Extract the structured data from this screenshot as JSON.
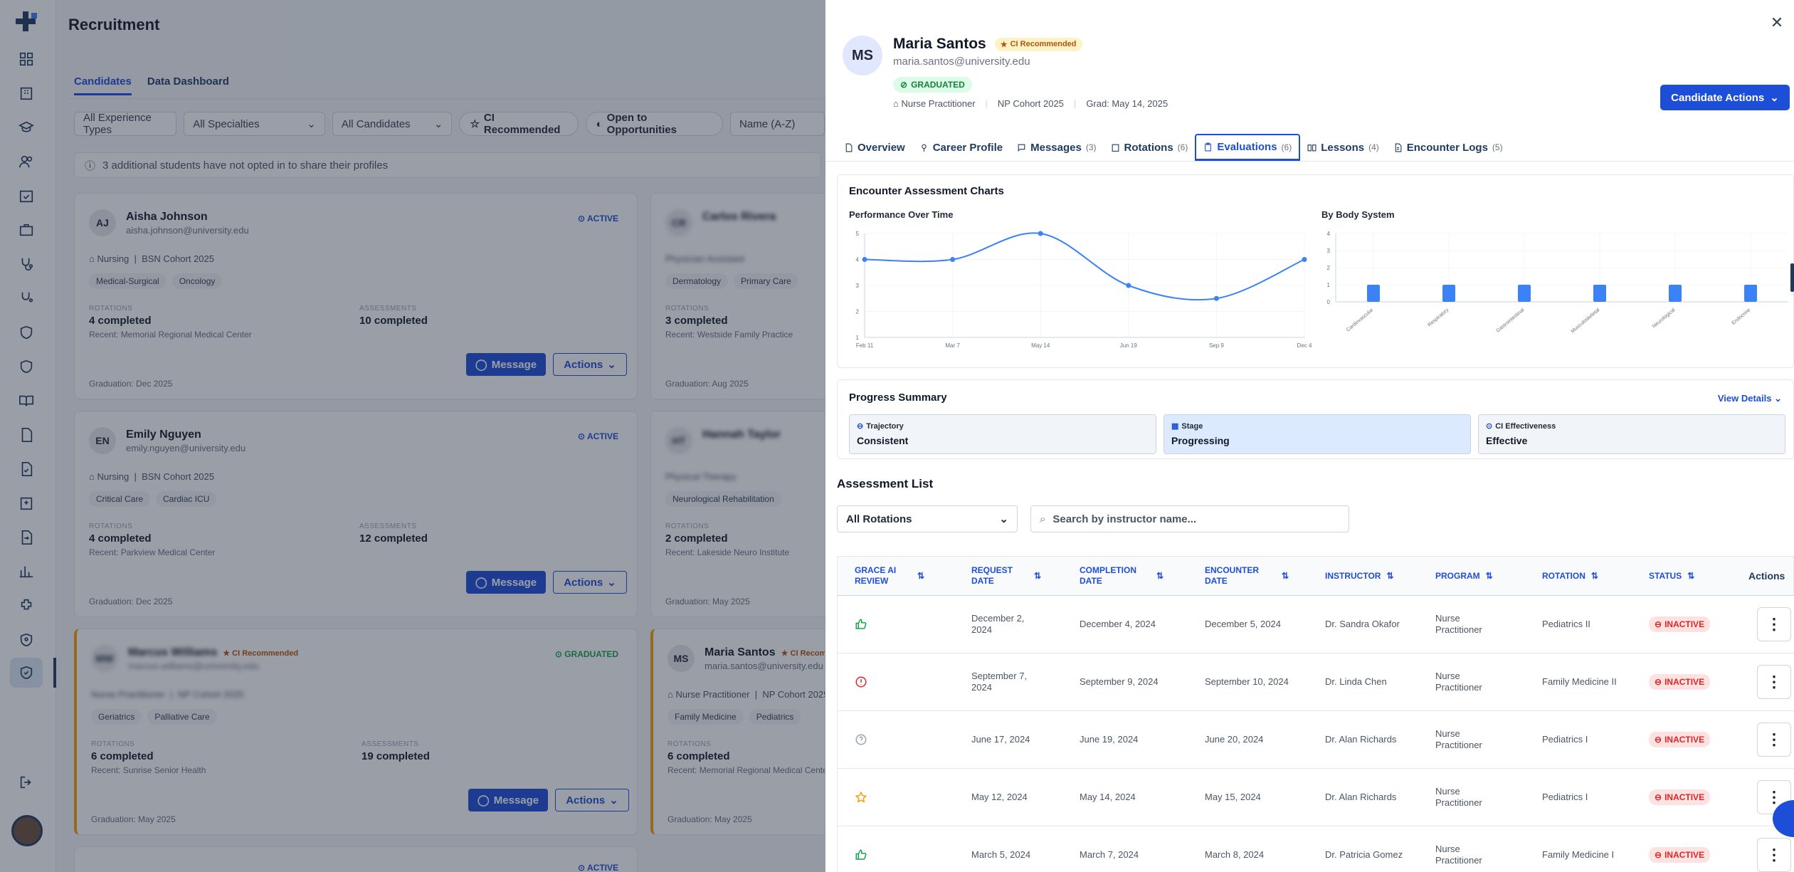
{
  "app": {
    "page_title": "Recruitment"
  },
  "bg_tabs": [
    "Candidates",
    "Data Dashboard"
  ],
  "bg_filters": {
    "experience": "All Experience Types",
    "specialties": "All Specialties",
    "candidates": "All Candidates",
    "ci_recommended": "CI Recommended",
    "open_to": "Open to Opportunities",
    "name": "Name (A-Z)"
  },
  "bg_notice": "3 additional students have not opted in to share their profiles",
  "bg_cards": [
    {
      "initials": "AJ",
      "name": "Aisha Johnson",
      "email": "aisha.johnson@university.edu",
      "status": "ACTIVE",
      "program": "Nursing",
      "cohort": "BSN Cohort 2025",
      "tags": [
        "Medical-Surgical",
        "Oncology"
      ],
      "rotations_label": "ROTATIONS",
      "rotations": "4 completed",
      "recent": "Recent: Memorial Regional Medical Center",
      "assess_label": "ASSESSMENTS",
      "assessments": "10 completed",
      "graduation": "Graduation: Dec 2025",
      "message": "Message",
      "actions": "Actions"
    },
    {
      "initials": "EN",
      "name": "Emily Nguyen",
      "email": "emily.nguyen@university.edu",
      "status": "ACTIVE",
      "program": "Nursing",
      "cohort": "BSN Cohort 2025",
      "tags": [
        "Critical Care",
        "Cardiac ICU"
      ],
      "rotations_label": "ROTATIONS",
      "rotations": "4 completed",
      "recent": "Recent: Parkview Medical Center",
      "assess_label": "ASSESSMENTS",
      "assessments": "12 completed",
      "graduation": "Graduation: Dec 2025",
      "message": "Message",
      "actions": "Actions"
    },
    {
      "initials": "MW",
      "name": "Marcus Williams",
      "email": "marcus.williams@university.edu",
      "status": "GRADUATED",
      "ci": "CI Recommended",
      "program": "Nurse Practitioner",
      "cohort": "NP Cohort 2025",
      "tags": [
        "Geriatrics",
        "Palliative Care"
      ],
      "rotations_label": "ROTATIONS",
      "rotations": "6 completed",
      "recent": "Recent: Sunrise Senior Health",
      "assess_label": "ASSESSMENTS",
      "assessments": "19 completed",
      "graduation": "Graduation: May 2025",
      "message": "Message",
      "actions": "Actions"
    }
  ],
  "bg_cards_right": [
    {
      "initials": "CR",
      "name": "Carlos Rivera",
      "program": "Physician Assistant",
      "tags": [
        "Dermatology",
        "Primary Care"
      ],
      "rotations": "3 completed",
      "recent": "Recent: Westside Family Practice",
      "graduation": "Graduation: Aug 2025"
    },
    {
      "initials": "HT",
      "name": "Hannah Taylor",
      "program": "Physical Therapy",
      "tags": [
        "Neurological Rehabilitation"
      ],
      "rotations": "2 completed",
      "recent": "Recent: Lakeside Neuro Institute",
      "graduation": "Graduation: May 2025"
    },
    {
      "initials": "MS",
      "name": "Maria Santos",
      "email": "maria.santos@university.edu",
      "ci": "CI Recommended",
      "program": "Nurse Practitioner",
      "cohort": "NP Cohort 2025",
      "tags": [
        "Family Medicine",
        "Pediatrics"
      ],
      "rotations": "6 completed",
      "recent": "Recent: Memorial Regional Medical Center",
      "graduation": "Graduation: May 2025"
    }
  ],
  "drawer": {
    "initials": "MS",
    "name": "Maria Santos",
    "ci_badge": "CI Recommended",
    "email": "maria.santos@university.edu",
    "status": "GRADUATED",
    "program": "Nurse Practitioner",
    "cohort": "NP Cohort 2025",
    "grad": "Grad: May 14, 2025",
    "candidate_actions": "Candidate Actions",
    "tabs": [
      {
        "label": "Overview",
        "count": ""
      },
      {
        "label": "Career Profile",
        "count": ""
      },
      {
        "label": "Messages",
        "count": "(3)"
      },
      {
        "label": "Rotations",
        "count": "(6)"
      },
      {
        "label": "Evaluations",
        "count": "(6)"
      },
      {
        "label": "Lessons",
        "count": "(4)"
      },
      {
        "label": "Encounter Logs",
        "count": "(5)"
      }
    ]
  },
  "charts": {
    "heading": "Encounter Assessment Charts",
    "perf_title": "Performance Over Time",
    "body_title": "By Body System"
  },
  "chart_data": [
    {
      "type": "line",
      "title": "Performance Over Time",
      "x": [
        "Feb 11",
        "Mar 7",
        "May 14",
        "Jun 19",
        "Sep 9",
        "Dec 4"
      ],
      "values": [
        4,
        4,
        5,
        3,
        2.5,
        4
      ],
      "ylim": [
        1,
        5
      ],
      "yticks": [
        1,
        2,
        3,
        4,
        5
      ],
      "color": "#3b82f6",
      "grid": true
    },
    {
      "type": "bar",
      "title": "By Body System",
      "categories": [
        "Cardiovascular",
        "Respiratory",
        "Gastrointestinal",
        "Musculoskeletal",
        "Neurological",
        "Endocrine"
      ],
      "values": [
        1,
        1,
        1,
        1,
        1,
        1
      ],
      "ylim": [
        0,
        4
      ],
      "yticks": [
        0,
        1,
        2,
        3,
        4
      ],
      "color": "#3b82f6",
      "grid": true
    }
  ],
  "progress": {
    "title": "Progress Summary",
    "view_details": "View Details",
    "items": [
      {
        "label": "Trajectory",
        "value": "Consistent"
      },
      {
        "label": "Stage",
        "value": "Progressing"
      },
      {
        "label": "CI Effectiveness",
        "value": "Effective"
      }
    ]
  },
  "assessment_list": {
    "title": "Assessment List",
    "rotation_filter": "All Rotations",
    "search_placeholder": "Search by instructor name...",
    "columns": [
      "GRACE AI REVIEW",
      "REQUEST DATE",
      "COMPLETION DATE",
      "ENCOUNTER DATE",
      "INSTRUCTOR",
      "PROGRAM",
      "ROTATION",
      "STATUS",
      "Actions"
    ],
    "rows": [
      {
        "review_icon": "thumbs-up-icon",
        "request": "December 2, 2024",
        "completion": "December 4, 2024",
        "encounter": "December 5, 2024",
        "instructor": "Dr. Sandra Okafor",
        "program": "Nurse Practitioner",
        "rotation": "Pediatrics II",
        "status": "INACTIVE"
      },
      {
        "review_icon": "alert-circle-icon",
        "request": "September 7, 2024",
        "completion": "September 9, 2024",
        "encounter": "September 10, 2024",
        "instructor": "Dr. Linda Chen",
        "program": "Nurse Practitioner",
        "rotation": "Family Medicine II",
        "status": "INACTIVE"
      },
      {
        "review_icon": "question-circle-icon",
        "request": "June 17, 2024",
        "completion": "June 19, 2024",
        "encounter": "June 20, 2024",
        "instructor": "Dr. Alan Richards",
        "program": "Nurse Practitioner",
        "rotation": "Pediatrics I",
        "status": "INACTIVE"
      },
      {
        "review_icon": "star-icon",
        "request": "May 12, 2024",
        "completion": "May 14, 2024",
        "encounter": "May 15, 2024",
        "instructor": "Dr. Alan Richards",
        "program": "Nurse Practitioner",
        "rotation": "Pediatrics I",
        "status": "INACTIVE"
      },
      {
        "review_icon": "thumbs-up-icon",
        "request": "March 5, 2024",
        "completion": "March 7, 2024",
        "encounter": "March 8, 2024",
        "instructor": "Dr. Patricia Gomez",
        "program": "Nurse Practitioner",
        "rotation": "Family Medicine I",
        "status": "INACTIVE"
      }
    ]
  },
  "colors": {
    "primary": "#1d4ed8",
    "accent_series": "#3b82f6",
    "inactive": "#dc2626",
    "graduated": "#16a34a",
    "ci": "#b45309"
  }
}
